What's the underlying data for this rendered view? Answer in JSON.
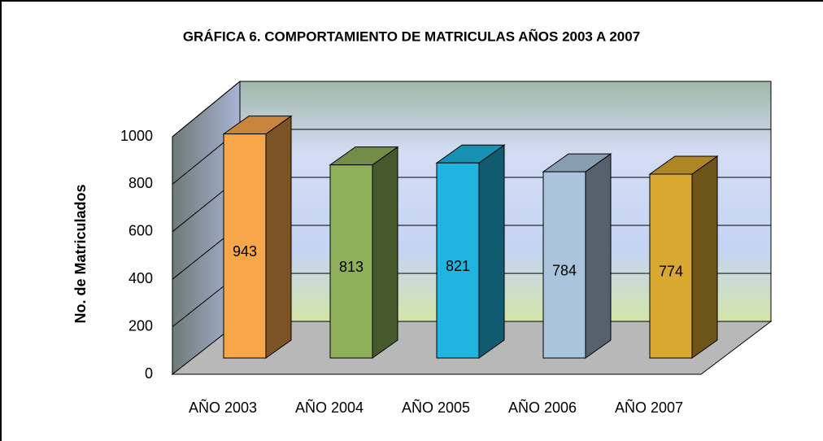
{
  "chart_data": {
    "type": "bar3d",
    "title": "GRÁFICA 6.  COMPORTAMIENTO DE MATRICULAS AÑOS 2003 A 2007",
    "y_label": "No. de Matriculados",
    "categories": [
      "AÑO 2003",
      "AÑO 2004",
      "AÑO 2005",
      "AÑO 2006",
      "AÑO 2007"
    ],
    "values": [
      943,
      813,
      821,
      784,
      774
    ],
    "colors": [
      "#f7a64a",
      "#8fb05a",
      "#1fb5e0",
      "#a9c4dc",
      "#d9a830"
    ],
    "ylim": [
      0,
      1000
    ],
    "yticks": [
      0,
      200,
      400,
      600,
      800,
      1000
    ],
    "grid": true
  }
}
